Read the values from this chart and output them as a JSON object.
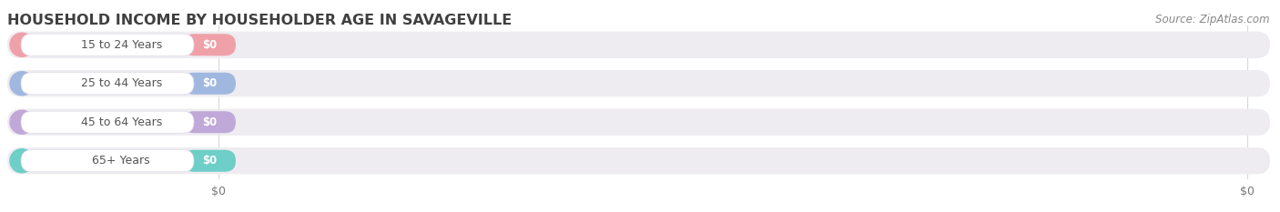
{
  "title": "HOUSEHOLD INCOME BY HOUSEHOLDER AGE IN SAVAGEVILLE",
  "source": "Source: ZipAtlas.com",
  "categories": [
    "15 to 24 Years",
    "25 to 44 Years",
    "45 to 64 Years",
    "65+ Years"
  ],
  "values": [
    0,
    0,
    0,
    0
  ],
  "bar_colors": [
    "#f0a0a8",
    "#a0b8e0",
    "#c0a8d8",
    "#6ecec8"
  ],
  "background_color": "#ffffff",
  "row_bg_color": "#eeecf0",
  "title_color": "#404040",
  "label_color": "#555555",
  "source_color": "#888888",
  "grid_color": "#d8d8d8",
  "title_fontsize": 11.5,
  "label_fontsize": 9,
  "value_fontsize": 8.5,
  "tick_fontsize": 9
}
